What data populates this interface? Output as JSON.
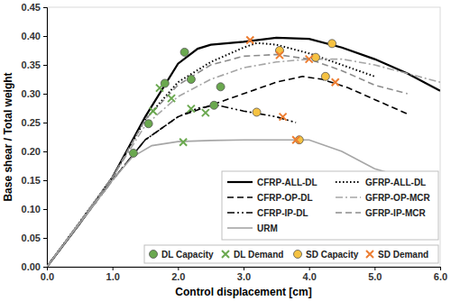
{
  "chart_data": {
    "type": "line",
    "x_label": "Control displacement [cm]",
    "y_label": "Base shear / Total weight",
    "xlim": [
      0,
      6
    ],
    "ylim": [
      0,
      0.45
    ],
    "xticks": [
      {
        "value": 0,
        "label": "0.0"
      },
      {
        "value": 1,
        "label": "1.0"
      },
      {
        "value": 2,
        "label": "2.0"
      },
      {
        "value": 3,
        "label": "3.0"
      },
      {
        "value": 4,
        "label": "4.0"
      },
      {
        "value": 5,
        "label": "5.0"
      },
      {
        "value": 6,
        "label": "6.0"
      }
    ],
    "yticks": [
      {
        "value": 0,
        "label": "0.00"
      },
      {
        "value": 0.05,
        "label": "0.05"
      },
      {
        "value": 0.1,
        "label": "0.10"
      },
      {
        "value": 0.15,
        "label": "0.15"
      },
      {
        "value": 0.2,
        "label": "0.20"
      },
      {
        "value": 0.25,
        "label": "0.25"
      },
      {
        "value": 0.3,
        "label": "0.30"
      },
      {
        "value": 0.35,
        "label": "0.35"
      },
      {
        "value": 0.4,
        "label": "0.40"
      },
      {
        "value": 0.45,
        "label": "0.45"
      }
    ],
    "grid": false,
    "legend": "lower right",
    "series": [
      {
        "name": "CFRP-ALL-DL",
        "type": "line",
        "color": "#000000",
        "line_style": "solid",
        "x": [
          0,
          0.5,
          1.0,
          1.5,
          2.0,
          2.3,
          2.5,
          3.0,
          3.5,
          4.0,
          4.5,
          5.0,
          5.5,
          6.0
        ],
        "values": [
          0,
          0.075,
          0.155,
          0.26,
          0.352,
          0.378,
          0.385,
          0.39,
          0.397,
          0.395,
          0.38,
          0.36,
          0.335,
          0.305
        ]
      },
      {
        "name": "GFRP-ALL-DL",
        "type": "line",
        "color": "#000000",
        "line_style": "dotted",
        "x": [
          0,
          1.0,
          1.5,
          2.0,
          2.5,
          3.0,
          3.2,
          3.5,
          4.0,
          4.5,
          5.0
        ],
        "values": [
          0,
          0.155,
          0.255,
          0.32,
          0.355,
          0.38,
          0.388,
          0.385,
          0.37,
          0.35,
          0.33
        ]
      },
      {
        "name": "CFRP-OP-DL",
        "type": "line",
        "color": "#000000",
        "line_style": "dashed",
        "x": [
          0,
          1.0,
          1.5,
          2.0,
          2.5,
          3.0,
          3.5,
          3.9,
          4.2,
          4.6,
          5.0,
          5.5
        ],
        "values": [
          0,
          0.15,
          0.22,
          0.26,
          0.28,
          0.3,
          0.32,
          0.33,
          0.325,
          0.31,
          0.29,
          0.265
        ]
      },
      {
        "name": "GFRP-OP-MCR",
        "type": "line",
        "color": "#a6a6a6",
        "line_style": "dashdot",
        "x": [
          0,
          1.0,
          1.5,
          2.0,
          2.5,
          3.0,
          3.5,
          4.0,
          4.5,
          5.0,
          5.5,
          6.0
        ],
        "values": [
          0,
          0.155,
          0.245,
          0.295,
          0.325,
          0.345,
          0.355,
          0.36,
          0.36,
          0.35,
          0.335,
          0.32
        ]
      },
      {
        "name": "CFRP-IP-DL",
        "type": "line",
        "color": "#000000",
        "line_style": "dashdotdot",
        "x": [
          0,
          1.0,
          1.5,
          2.0,
          2.3,
          2.6,
          3.0,
          3.5,
          3.8
        ],
        "values": [
          0,
          0.15,
          0.22,
          0.26,
          0.275,
          0.28,
          0.27,
          0.26,
          0.25
        ]
      },
      {
        "name": "GFRP-IP-MCR",
        "type": "line",
        "color": "#8c8c8c",
        "line_style": "dashed",
        "x": [
          0,
          1.0,
          1.5,
          2.0,
          2.5,
          3.0,
          3.5,
          4.0,
          4.5,
          5.0,
          5.5
        ],
        "values": [
          0,
          0.155,
          0.255,
          0.315,
          0.35,
          0.365,
          0.368,
          0.36,
          0.34,
          0.315,
          0.3
        ]
      },
      {
        "name": "URM",
        "type": "line",
        "color": "#a6a6a6",
        "line_style": "solid",
        "x": [
          0,
          0.5,
          1.0,
          1.3,
          1.6,
          2.0,
          2.5,
          3.0,
          3.5,
          4.0,
          4.5,
          5.0,
          5.3
        ],
        "values": [
          0,
          0.075,
          0.15,
          0.19,
          0.21,
          0.217,
          0.219,
          0.22,
          0.22,
          0.22,
          0.2,
          0.17,
          0.16
        ]
      },
      {
        "name": "DL Capacity",
        "type": "scatter",
        "color": "#6aa84f",
        "marker": "circle",
        "x": [
          1.32,
          1.55,
          1.8,
          2.1,
          2.2,
          2.65,
          2.55
        ],
        "values": [
          0.197,
          0.248,
          0.318,
          0.372,
          0.325,
          0.312,
          0.28
        ]
      },
      {
        "name": "DL Demand",
        "type": "scatter",
        "color": "#6aa84f",
        "marker": "x",
        "x": [
          2.08,
          1.72,
          1.9,
          2.2,
          2.42,
          1.62
        ],
        "values": [
          0.216,
          0.31,
          0.292,
          0.274,
          0.267,
          0.27
        ]
      },
      {
        "name": "SD Capacity",
        "type": "scatter",
        "color": "#f5c242",
        "marker": "circle",
        "x": [
          3.2,
          3.55,
          3.85,
          4.1,
          4.35,
          4.25
        ],
        "values": [
          0.268,
          0.375,
          0.22,
          0.363,
          0.387,
          0.33
        ]
      },
      {
        "name": "SD Demand",
        "type": "scatter",
        "color": "#ed7d31",
        "marker": "x",
        "x": [
          3.1,
          3.55,
          3.6,
          3.8,
          4.0,
          4.4
        ],
        "values": [
          0.393,
          0.367,
          0.26,
          0.22,
          0.36,
          0.32
        ]
      }
    ]
  }
}
